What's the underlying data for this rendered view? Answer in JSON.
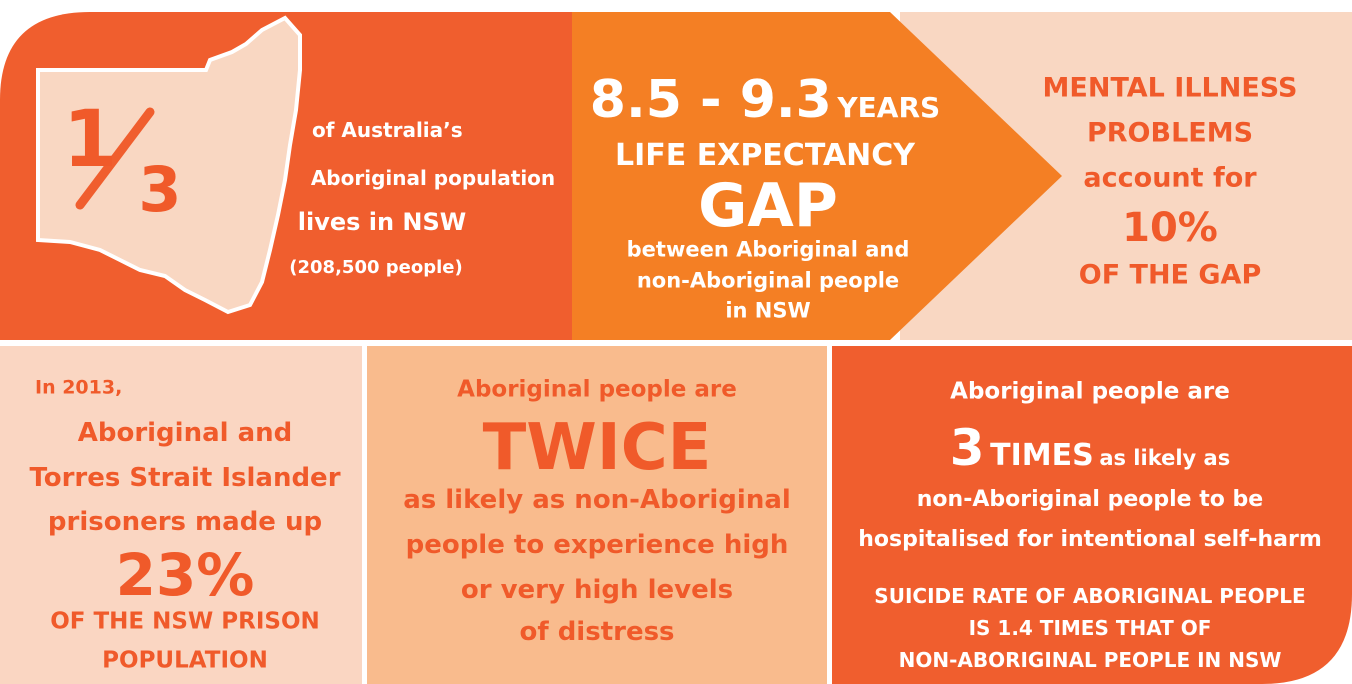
{
  "life_in_nsw": {
    "fraction_numerator": "1",
    "fraction_denominator": "3",
    "lines": [
      "of Australia’s",
      "Aboriginal population",
      "lives in NSW",
      "(208,500 people)"
    ]
  },
  "life_expectancy": {
    "range": "8.5 - 9.3",
    "unit": "YEARS",
    "heading": "LIFE EXPECTANCY",
    "big": "GAP",
    "lines": [
      "between Aboriginal and",
      "non-Aboriginal people",
      "in NSW"
    ]
  },
  "mental_illness": {
    "lines": [
      "MENTAL ILLNESS",
      "PROBLEMS",
      "account for"
    ],
    "big": "10%",
    "footer": "OF THE GAP"
  },
  "prisoners": {
    "intro": "In 2013,",
    "lines": [
      "Aboriginal and",
      "Torres Strait Islander",
      "prisoners made up"
    ],
    "big": "23%",
    "footer": [
      "OF THE NSW PRISON",
      "POPULATION"
    ]
  },
  "distress": {
    "intro": "Aboriginal people are",
    "big": "TWICE",
    "lines": [
      "as likely as non-Aboriginal",
      "people to experience high",
      "or very high levels",
      "of distress"
    ]
  },
  "self_harm": {
    "intro": "Aboriginal people are",
    "big": "3",
    "big_unit": "TIMES",
    "tail": "as likely as",
    "lines": [
      "non-Aboriginal people to be",
      "hospitalised for intentional self-harm"
    ],
    "footer": [
      "SUICIDE RATE OF ABORIGINAL PEOPLE",
      "IS 1.4 TIMES THAT OF",
      "NON-ABORIGINAL PEOPLE IN NSW"
    ]
  }
}
